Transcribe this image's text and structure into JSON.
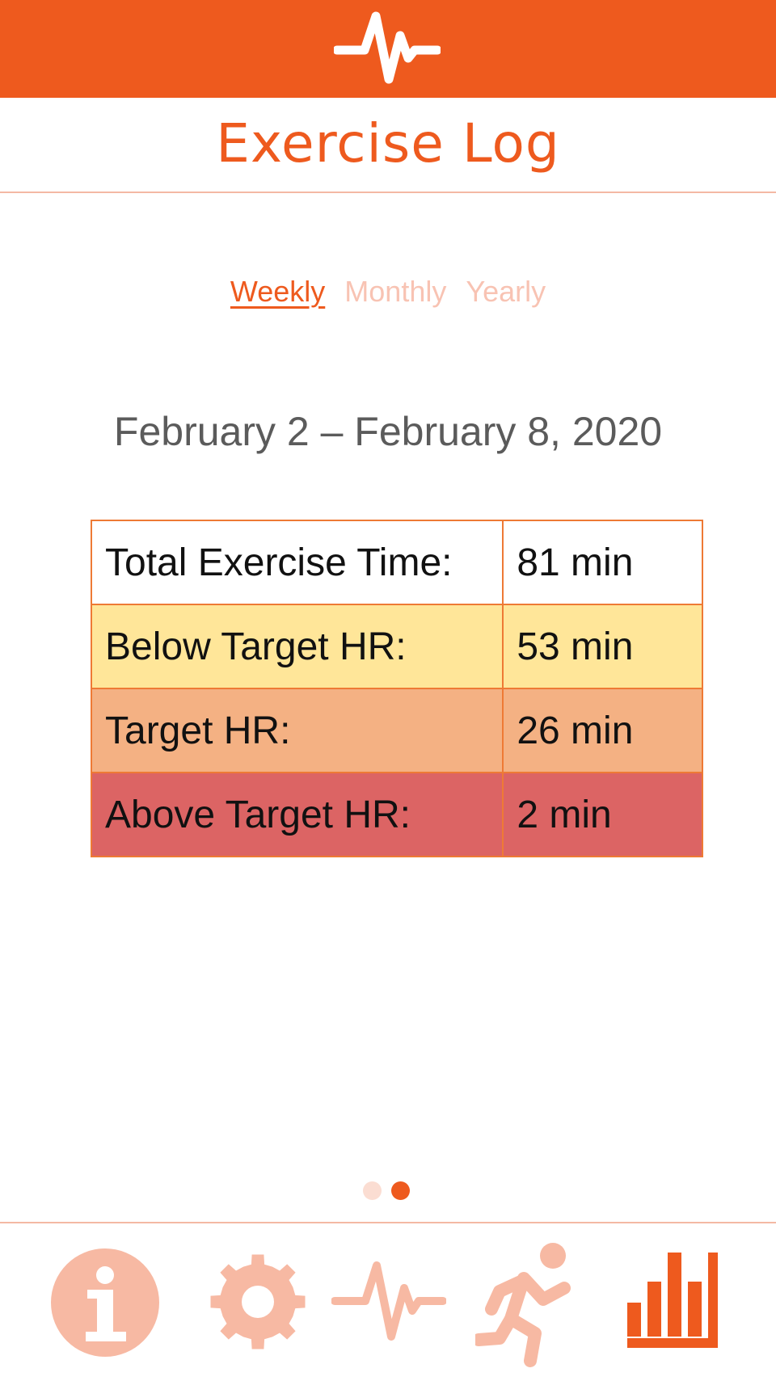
{
  "app": {
    "title": "Exercise Log",
    "header_icon": "heartbeat-pulse-icon"
  },
  "tabs": [
    {
      "label": "Weekly",
      "active": true
    },
    {
      "label": "Monthly",
      "active": false
    },
    {
      "label": "Yearly",
      "active": false
    }
  ],
  "date_range": "February 2 – February 8, 2020",
  "stats": {
    "rows": [
      {
        "label": "Total Exercise Time:",
        "value": "81 min",
        "color": "#ffffff"
      },
      {
        "label": "Below Target HR:",
        "value": "53 min",
        "color": "#ffe699"
      },
      {
        "label": "Target HR:",
        "value": "26 min",
        "color": "#f4b183"
      },
      {
        "label": "Above Target HR:",
        "value": "2 min",
        "color": "#dc6464"
      }
    ]
  },
  "pagination": {
    "pages": 2,
    "current": 2
  },
  "bottom_nav": [
    {
      "name": "info",
      "icon": "info-icon",
      "active": false
    },
    {
      "name": "settings",
      "icon": "gear-icon",
      "active": false
    },
    {
      "name": "heart-rate",
      "icon": "heartbeat-icon",
      "active": false
    },
    {
      "name": "exercise",
      "icon": "running-person-icon",
      "active": false
    },
    {
      "name": "stats",
      "icon": "bar-chart-icon",
      "active": true
    }
  ],
  "colors": {
    "accent": "#ee5a1e",
    "inactive_nav": "#f7b9a3",
    "inactive_tab": "#f8c3b3",
    "divider": "#f4b9a4",
    "table_border": "#ee7a35",
    "date_text": "#5b5b5b"
  }
}
